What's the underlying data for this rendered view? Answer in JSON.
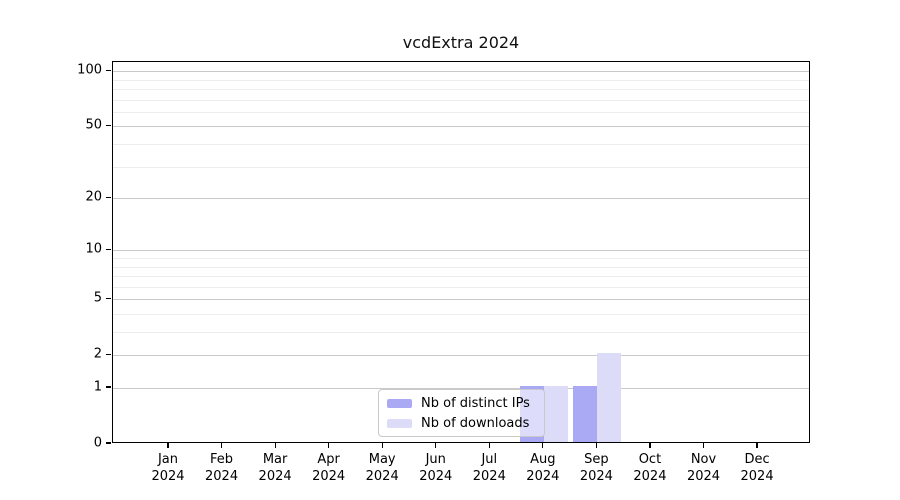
{
  "chart_data": {
    "type": "bar",
    "title": "vcdExtra 2024",
    "categories": [
      {
        "month": "Jan",
        "year": "2024"
      },
      {
        "month": "Feb",
        "year": "2024"
      },
      {
        "month": "Mar",
        "year": "2024"
      },
      {
        "month": "Apr",
        "year": "2024"
      },
      {
        "month": "May",
        "year": "2024"
      },
      {
        "month": "Jun",
        "year": "2024"
      },
      {
        "month": "Jul",
        "year": "2024"
      },
      {
        "month": "Aug",
        "year": "2024"
      },
      {
        "month": "Sep",
        "year": "2024"
      },
      {
        "month": "Oct",
        "year": "2024"
      },
      {
        "month": "Nov",
        "year": "2024"
      },
      {
        "month": "Dec",
        "year": "2024"
      }
    ],
    "series": [
      {
        "name": "Nb of distinct IPs",
        "color": "#aaaaf4",
        "values": [
          0,
          0,
          0,
          0,
          0,
          0,
          0,
          1,
          1,
          0,
          0,
          0
        ]
      },
      {
        "name": "Nb of downloads",
        "color": "#dcdcf9",
        "values": [
          0,
          0,
          0,
          0,
          0,
          0,
          0,
          1,
          2,
          0,
          0,
          0
        ]
      }
    ],
    "y_axis": {
      "scale": "log10(value+1)",
      "tick_values": [
        0,
        1,
        2,
        5,
        10,
        20,
        50,
        100
      ],
      "tick_labels": [
        "0",
        "1",
        "2",
        "5",
        "10",
        "20",
        "50",
        "100"
      ],
      "minor_gridline_values": [
        3,
        4,
        6,
        7,
        8,
        9,
        30,
        40,
        60,
        70,
        80,
        90
      ],
      "range_top": 112
    },
    "legend": {
      "position": "inside-bottom-center"
    },
    "colors": {
      "major_grid": "#c9c9c9",
      "minor_grid": "#ededed",
      "axis": "#000000",
      "text": "#000000",
      "legend_border": "#c9c9c9"
    },
    "grid": true
  }
}
